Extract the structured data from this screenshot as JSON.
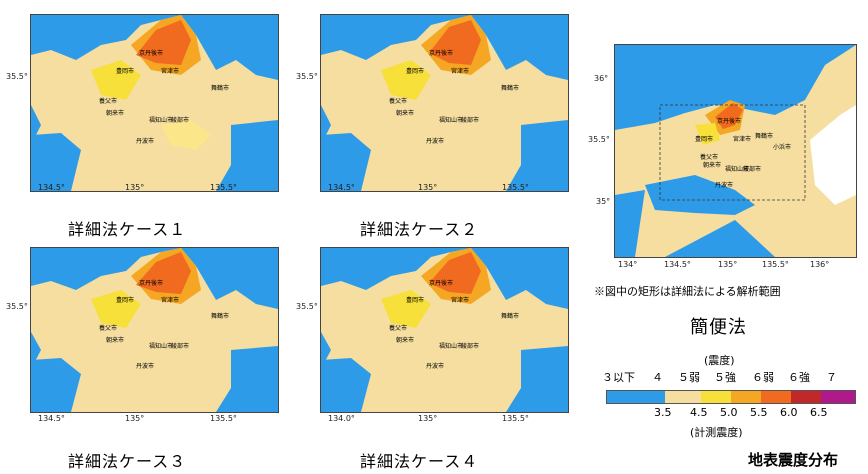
{
  "colors": {
    "sea": "#2e9be8",
    "land_low": "#f5dea0",
    "land_4": "#fbe68a",
    "yellow_5weak": "#f7e03a",
    "orange_5strong": "#f5a623",
    "orange_6weak": "#f06a1f",
    "red_6strong": "#c0282a",
    "magenta_7": "#b0198a"
  },
  "panels": {
    "case1": {
      "caption": "詳細法ケース１",
      "xticks": [
        "134.5°",
        "135°",
        "135.5°"
      ],
      "yticks": [
        "35.5°"
      ]
    },
    "case2": {
      "caption": "詳細法ケース２",
      "xticks": [
        "134.5°",
        "135°",
        "135.5°"
      ],
      "yticks": [
        "35.5°"
      ]
    },
    "case3": {
      "caption": "詳細法ケース３",
      "xticks": [
        "134.5°",
        "135°",
        "135.5°"
      ],
      "yticks": [
        "35.5°"
      ]
    },
    "case4": {
      "caption": "詳細法ケース４",
      "xticks": [
        "134.0°",
        "135°",
        "135.5°"
      ],
      "yticks": [
        "35.5°"
      ]
    },
    "simple": {
      "caption": "簡便法",
      "note": "※図中の矩形は詳細法による解析範囲",
      "xticks": [
        "134°",
        "134.5°",
        "135°",
        "135.5°",
        "136°"
      ],
      "yticks": [
        "36°",
        "35.5°",
        "35°"
      ]
    }
  },
  "cities": {
    "kyotango": "京丹後市",
    "miyazu": "宮津市",
    "maizuru": "舞鶴市",
    "toyooka": "豊岡市",
    "yabu": "養父市",
    "asago": "朝来市",
    "fukuchiyama": "福知山市",
    "ayabe": "綾部市",
    "tamba": "丹波市",
    "obama": "小浜市"
  },
  "legend": {
    "heading_top": "(震度)",
    "intensity_labels": [
      "３以下",
      "４",
      "５弱",
      "５強",
      "６弱",
      "６強",
      "７"
    ],
    "instrumental_values": [
      "3.5",
      "4.5",
      "5.0",
      "5.5",
      "6.0",
      "6.5"
    ],
    "heading_bottom": "(計測震度)",
    "title": "地表震度分布"
  }
}
